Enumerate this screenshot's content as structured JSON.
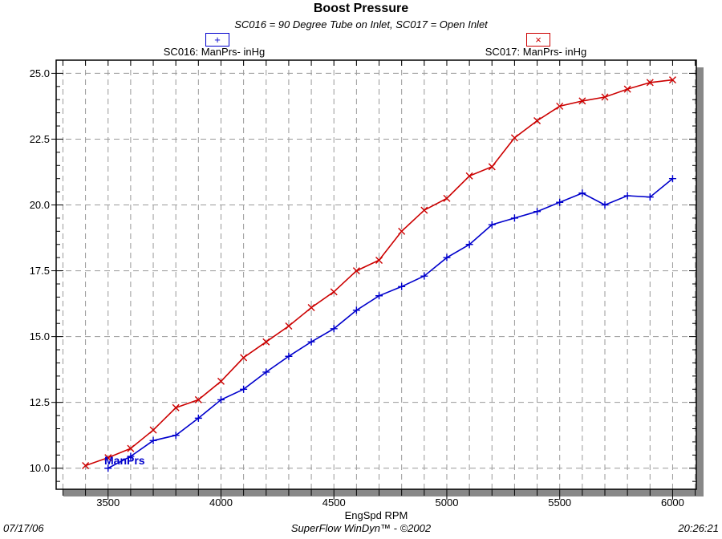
{
  "page": {
    "title": "Boost Pressure",
    "subtitle": "SC016 = 90 Degree Tube on Inlet, SC017 = Open Inlet"
  },
  "legend": [
    {
      "id": "SC016",
      "label": "SC016: ManPrs- inHg",
      "marker_glyph": "+",
      "color": "#0000cc"
    },
    {
      "id": "SC017",
      "label": "SC017: ManPrs- inHg",
      "marker_glyph": "×",
      "color": "#cc0000"
    }
  ],
  "axes": {
    "xlabel": "EngSpd RPM"
  },
  "inline_label": {
    "text": "ManPrs",
    "color": "#0000cc"
  },
  "footer": {
    "date": "07/17/06",
    "center": "SuperFlow WinDyn™ - ©2002",
    "time": "20:26:21"
  },
  "chart_data": {
    "type": "line",
    "title": "Boost Pressure",
    "subtitle": "SC016 = 90 Degree Tube on Inlet, SC017 = Open Inlet",
    "xlabel": "EngSpd RPM",
    "ylabel": "",
    "xlim": [
      3270,
      6105
    ],
    "ylim": [
      9.2,
      25.5
    ],
    "x_major_ticks": [
      3500,
      4000,
      4500,
      5000,
      5500,
      6000
    ],
    "x_minor_step": 100,
    "y_major_ticks": [
      10.0,
      12.5,
      15.0,
      17.5,
      20.0,
      22.5,
      25.0
    ],
    "y_minor_step": 0.5,
    "grid": "dashed",
    "legend_position": "top",
    "colors": {
      "grid": "#999999",
      "frame": "#000000",
      "shadow": "#888888",
      "background": "#ffffff"
    },
    "series": [
      {
        "name": "SC016: ManPrs- inHg",
        "color": "#0000cc",
        "marker": "plus",
        "x": [
          3500,
          3600,
          3700,
          3800,
          3900,
          4000,
          4100,
          4200,
          4300,
          4400,
          4500,
          4600,
          4700,
          4800,
          4900,
          5000,
          5100,
          5200,
          5300,
          5400,
          5500,
          5600,
          5700,
          5800,
          5900,
          6000
        ],
        "values": [
          10.0,
          10.45,
          11.05,
          11.25,
          11.9,
          12.6,
          13.0,
          13.65,
          14.25,
          14.8,
          15.3,
          16.0,
          16.55,
          16.9,
          17.3,
          18.0,
          18.5,
          19.25,
          19.5,
          19.75,
          20.1,
          20.45,
          20.0,
          20.35,
          20.3,
          21.0
        ]
      },
      {
        "name": "SC017: ManPrs- inHg",
        "color": "#cc0000",
        "marker": "x",
        "x": [
          3400,
          3500,
          3600,
          3700,
          3800,
          3900,
          4000,
          4100,
          4200,
          4300,
          4400,
          4500,
          4600,
          4700,
          4800,
          4900,
          5000,
          5100,
          5200,
          5300,
          5400,
          5500,
          5600,
          5700,
          5800,
          5900,
          6000
        ],
        "values": [
          10.1,
          10.4,
          10.75,
          11.45,
          12.3,
          12.6,
          13.3,
          14.2,
          14.8,
          15.4,
          16.1,
          16.7,
          17.5,
          17.9,
          19.0,
          19.8,
          20.25,
          21.1,
          21.45,
          22.55,
          23.2,
          23.75,
          23.95,
          24.1,
          24.4,
          24.65,
          24.75
        ]
      }
    ]
  }
}
